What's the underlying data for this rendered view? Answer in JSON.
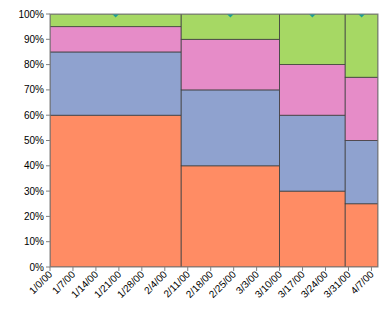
{
  "chart_data": {
    "type": "bar",
    "stacked": true,
    "grid": false,
    "bins": [
      0,
      40,
      70,
      90,
      100
    ],
    "series": [
      {
        "color": "#ff8c64",
        "values": [
          60,
          40,
          30,
          25
        ]
      },
      {
        "color": "#8fa2cf",
        "values": [
          25,
          30,
          30,
          25
        ]
      },
      {
        "color": "#e68cc8",
        "values": [
          10,
          20,
          20,
          25
        ]
      },
      {
        "color": "#a6d864",
        "values": [
          5,
          10,
          20,
          25
        ]
      },
      {
        "type": "scatter",
        "marker": "diamond",
        "color": "#1f9f94",
        "x": [
          20,
          55,
          80,
          95
        ],
        "values": [
          100,
          100,
          100,
          100
        ]
      }
    ],
    "xlim": [
      0,
      100
    ],
    "xticks": [
      {
        "value": 0,
        "label": "1/0/00"
      },
      {
        "value": 7,
        "label": "1/7/00"
      },
      {
        "value": 14,
        "label": "1/14/00"
      },
      {
        "value": 21,
        "label": "1/21/00"
      },
      {
        "value": 28,
        "label": "1/28/00"
      },
      {
        "value": 35,
        "label": "2/4/00"
      },
      {
        "value": 42,
        "label": "2/11/00"
      },
      {
        "value": 49,
        "label": "2/18/00"
      },
      {
        "value": 56,
        "label": "2/25/00"
      },
      {
        "value": 63,
        "label": "3/3/00"
      },
      {
        "value": 70,
        "label": "3/10/00"
      },
      {
        "value": 77,
        "label": "3/17/00"
      },
      {
        "value": 84,
        "label": "3/24/00"
      },
      {
        "value": 91,
        "label": "3/31/00"
      },
      {
        "value": 98,
        "label": "4/7/00"
      }
    ],
    "ylim": [
      0,
      100
    ],
    "yticks": [
      {
        "value": 0,
        "label": "0%"
      },
      {
        "value": 10,
        "label": "10%"
      },
      {
        "value": 20,
        "label": "20%"
      },
      {
        "value": 30,
        "label": "30%"
      },
      {
        "value": 40,
        "label": "40%"
      },
      {
        "value": 50,
        "label": "50%"
      },
      {
        "value": 60,
        "label": "60%"
      },
      {
        "value": 70,
        "label": "70%"
      },
      {
        "value": 80,
        "label": "80%"
      },
      {
        "value": 90,
        "label": "90%"
      },
      {
        "value": 100,
        "label": "100%"
      }
    ]
  }
}
